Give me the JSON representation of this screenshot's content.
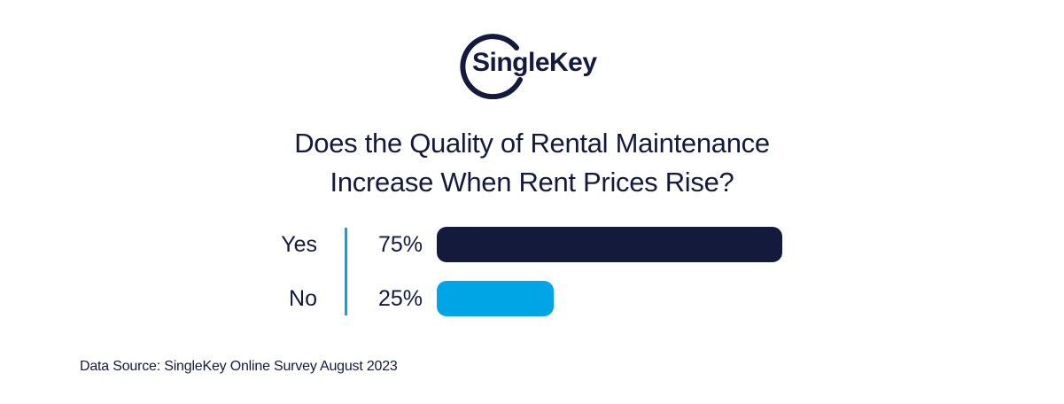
{
  "brand": {
    "logo_text": "SingleKey",
    "primary_color": "#131a3b",
    "accent_color": "#00a5e6"
  },
  "chart_data": {
    "type": "bar",
    "orientation": "horizontal",
    "title_lines": [
      "Does the Quality of Rental Maintenance",
      "Increase When Rent Prices Rise?"
    ],
    "categories": [
      "Yes",
      "No"
    ],
    "values": [
      75,
      25
    ],
    "value_labels": [
      "75%",
      "25%"
    ],
    "colors": [
      "#131a3b",
      "#00a5e6"
    ],
    "xlim": [
      0,
      75
    ],
    "grid": false,
    "legend": "none"
  },
  "source": "Data Source: SingleKey Online Survey August 2023"
}
